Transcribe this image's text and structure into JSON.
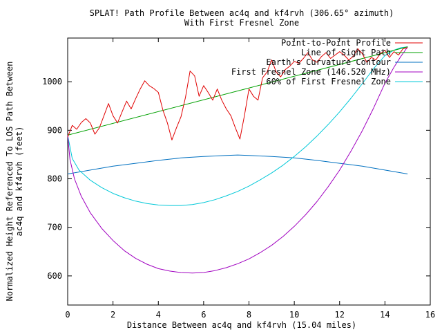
{
  "chart_data": {
    "type": "line",
    "title": "SPLAT! Path Profile Between ac4q and kf4rvh (306.65° azimuth)",
    "subtitle": "With First Fresnel Zone",
    "xlabel": "Distance Between ac4q and kf4rvh (15.04 miles)",
    "ylabel_line1": "Normalized Height Referenced To LOS Path Between",
    "ylabel_line2": "ac4q and kf4rvh (feet)",
    "xlim": [
      0,
      16
    ],
    "ylim": [
      540,
      1090
    ],
    "x_ticks": [
      0,
      2,
      4,
      6,
      8,
      10,
      12,
      14,
      16
    ],
    "y_ticks": [
      600,
      700,
      800,
      900,
      1000
    ],
    "legend_position": "top-right",
    "series": [
      {
        "name": "Point-to-Point Profile",
        "color": "#e00000",
        "x": [
          0.0,
          0.2,
          0.4,
          0.6,
          0.8,
          1.0,
          1.2,
          1.4,
          1.6,
          1.8,
          2.0,
          2.2,
          2.4,
          2.6,
          2.8,
          3.0,
          3.2,
          3.4,
          3.6,
          3.8,
          4.0,
          4.2,
          4.4,
          4.6,
          4.8,
          5.0,
          5.2,
          5.4,
          5.6,
          5.8,
          6.0,
          6.2,
          6.4,
          6.6,
          6.8,
          7.0,
          7.2,
          7.4,
          7.6,
          7.8,
          8.0,
          8.2,
          8.4,
          8.6,
          8.8,
          9.0,
          9.2,
          9.4,
          9.6,
          9.8,
          10.0,
          10.2,
          10.4,
          10.6,
          10.8,
          11.0,
          11.2,
          11.4,
          11.6,
          11.8,
          12.0,
          12.2,
          12.4,
          12.6,
          12.8,
          13.0,
          13.2,
          13.4,
          13.6,
          13.8,
          14.0,
          14.2,
          14.4,
          14.6,
          14.8,
          15.0
        ],
        "y": [
          886,
          910,
          902,
          916,
          924,
          915,
          892,
          905,
          930,
          955,
          930,
          915,
          938,
          960,
          944,
          965,
          985,
          1002,
          992,
          986,
          978,
          942,
          915,
          880,
          905,
          928,
          968,
          1022,
          1012,
          970,
          992,
          978,
          962,
          985,
          962,
          944,
          930,
          905,
          882,
          930,
          985,
          970,
          962,
          1008,
          1020,
          1045,
          1020,
          1010,
          1025,
          1032,
          1042,
          1038,
          1048,
          1060,
          1045,
          1040,
          1052,
          1060,
          1048,
          1055,
          1062,
          1055,
          1045,
          1052,
          1068,
          1058,
          1040,
          1050,
          1045,
          1058,
          1065,
          1050,
          1062,
          1055,
          1068,
          1070
        ]
      },
      {
        "name": "Line of Sight Path",
        "color": "#00a000",
        "x": [
          0.0,
          15.0
        ],
        "y": [
          890,
          1072
        ]
      },
      {
        "name": "Earth's Curvature Contour",
        "color": "#0070c0",
        "x": [
          0.0,
          1.0,
          2.0,
          3.0,
          4.0,
          5.0,
          6.0,
          7.0,
          7.5,
          8.0,
          9.0,
          10.0,
          11.0,
          12.0,
          13.0,
          14.0,
          15.0
        ],
        "y": [
          810,
          818,
          826,
          832,
          838,
          843,
          846,
          848,
          849,
          848,
          846,
          843,
          838,
          832,
          826,
          818,
          810
        ]
      },
      {
        "name": "First Fresnel Zone (146.520 MHz)",
        "color": "#a000c0",
        "x": [
          0.0,
          0.1,
          0.3,
          0.6,
          1.0,
          1.5,
          2.0,
          2.5,
          3.0,
          3.5,
          4.0,
          4.5,
          5.0,
          5.5,
          6.0,
          6.5,
          7.0,
          7.5,
          8.0,
          8.5,
          9.0,
          9.5,
          10.0,
          10.5,
          11.0,
          11.5,
          12.0,
          12.5,
          13.0,
          13.5,
          14.0,
          14.4,
          14.7,
          14.9,
          15.0
        ],
        "y": [
          890,
          840,
          800,
          764,
          730,
          698,
          673,
          652,
          636,
          624,
          615,
          610,
          607,
          606,
          607,
          611,
          617,
          625,
          635,
          648,
          663,
          681,
          702,
          726,
          753,
          784,
          818,
          857,
          899,
          946,
          997,
          1030,
          1052,
          1065,
          1072
        ]
      },
      {
        "name": "60% of First Fresnel Zone",
        "color": "#00c8d8",
        "x": [
          0.0,
          0.2,
          0.5,
          1.0,
          1.5,
          2.0,
          2.5,
          3.0,
          3.5,
          4.0,
          4.5,
          5.0,
          5.5,
          6.0,
          6.5,
          7.0,
          7.5,
          8.0,
          8.5,
          9.0,
          9.5,
          10.0,
          10.5,
          11.0,
          11.5,
          12.0,
          12.5,
          13.0,
          13.5,
          14.0,
          14.4,
          14.7,
          15.0
        ],
        "y": [
          890,
          842,
          818,
          797,
          782,
          770,
          761,
          754,
          749,
          746,
          745,
          745,
          747,
          751,
          757,
          765,
          774,
          785,
          798,
          812,
          828,
          846,
          866,
          888,
          912,
          938,
          966,
          996,
          1027,
          1054,
          1065,
          1070,
          1072
        ]
      }
    ]
  }
}
